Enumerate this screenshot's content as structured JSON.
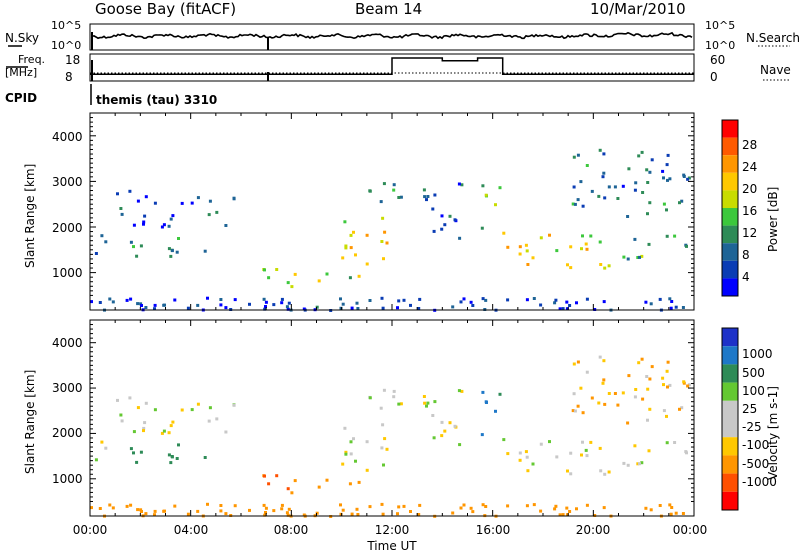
{
  "header": {
    "station": "Goose Bay (fitACF)",
    "beam": "Beam 14",
    "date": "10/Mar/2010"
  },
  "noise_panel": {
    "left_label": "N.Sky",
    "right_label": "N.Search",
    "left_ticks": [
      "10^5",
      "10^0"
    ],
    "right_ticks": [
      "10^5",
      "10^0"
    ]
  },
  "freq_panel": {
    "left_label_1": "Freq.",
    "left_label_2": "[MHz]",
    "right_label": "Nave",
    "left_ticks": [
      "18",
      "8"
    ],
    "right_ticks": [
      "60",
      "0"
    ]
  },
  "cpid": {
    "label": "CPID",
    "program": "themis (tau) 3310"
  },
  "power_panel": {
    "ylabel": "Slant Range [km]",
    "yticks": [
      "4000",
      "3000",
      "2000",
      "1000"
    ],
    "colorbar_label": "Power [dB]",
    "colorbar_ticks": [
      "28",
      "24",
      "20",
      "16",
      "12",
      "8",
      "4"
    ],
    "colorbar_colors": [
      "#ff0000",
      "#ff5a00",
      "#ff9600",
      "#ffc800",
      "#c8dc00",
      "#3cc83c",
      "#2e8b57",
      "#1e6496",
      "#0a3cb4",
      "#0000ff"
    ]
  },
  "velocity_panel": {
    "ylabel": "Slant Range [km]",
    "yticks": [
      "4000",
      "3000",
      "2000",
      "1000"
    ],
    "colorbar_label": "Velocity [m s-1]",
    "colorbar_ticks": [
      "1000",
      "500",
      "100",
      "25",
      "-25",
      "-100",
      "-500",
      "-1000"
    ],
    "colorbar_colors": [
      "#1e32c8",
      "#1e78c8",
      "#2e8b57",
      "#64c832",
      "#c8c8c8",
      "#c8c8c8",
      "#ffc800",
      "#ff9600",
      "#ff5000",
      "#ff0000"
    ]
  },
  "xaxis": {
    "label": "Time UT",
    "ticks": [
      "00:00",
      "04:00",
      "08:00",
      "12:00",
      "16:00",
      "20:00",
      "00:00"
    ]
  },
  "chart_data": {
    "type": "heatmap",
    "x_unit": "hours UT",
    "xlim": [
      0,
      24
    ],
    "ylim_km": [
      180,
      4500
    ],
    "frequency_mhz_segments": [
      {
        "start": 0,
        "end": 12,
        "value": 10.5
      },
      {
        "start": 12,
        "end": 14,
        "value": 16.5
      },
      {
        "start": 14,
        "end": 15.4,
        "value": 15.5
      },
      {
        "start": 15.4,
        "end": 16.4,
        "value": 16.5
      },
      {
        "start": 16.4,
        "end": 24,
        "value": 10.5
      }
    ],
    "scatter_regions": [
      {
        "t": [
          0,
          0.9
        ],
        "r": [
          1400,
          2000
        ],
        "power_db": 8,
        "velocity": 0
      },
      {
        "t": [
          0.8,
          5.8
        ],
        "r": [
          2000,
          2800
        ],
        "power_db": 7,
        "velocity": 0
      },
      {
        "t": [
          1.6,
          5.0
        ],
        "r": [
          1300,
          1800
        ],
        "power_db": 10,
        "velocity": 200
      },
      {
        "t": [
          6.8,
          9.6
        ],
        "r": [
          600,
          1100
        ],
        "power_db": 18,
        "velocity": -300
      },
      {
        "t": [
          10.1,
          12.0
        ],
        "r": [
          1200,
          2300
        ],
        "power_db": 20,
        "velocity": 0
      },
      {
        "t": [
          10.0,
          11.1
        ],
        "r": [
          800,
          1400
        ],
        "power_db": 16,
        "velocity": -80
      },
      {
        "t": [
          10.6,
          14.8
        ],
        "r": [
          2400,
          3000
        ],
        "power_db": 9,
        "velocity": 0
      },
      {
        "t": [
          12.8,
          15.0
        ],
        "r": [
          1700,
          2300
        ],
        "power_db": 8,
        "velocity": 0
      },
      {
        "t": [
          15.5,
          16.3
        ],
        "r": [
          1900,
          3000
        ],
        "power_db": 16,
        "velocity": 300
      },
      {
        "t": [
          16.3,
          21.0
        ],
        "r": [
          1100,
          1900
        ],
        "power_db": 20,
        "velocity": 0
      },
      {
        "t": [
          21.0,
          24.0
        ],
        "r": [
          1300,
          1900
        ],
        "power_db": 14,
        "velocity": 0
      },
      {
        "t": [
          19.0,
          24.0
        ],
        "r": [
          2200,
          3700
        ],
        "power_db": 9,
        "velocity": -50
      },
      {
        "t": [
          0,
          24
        ],
        "r": [
          180,
          450
        ],
        "power_db": 6,
        "velocity": -200
      }
    ]
  }
}
